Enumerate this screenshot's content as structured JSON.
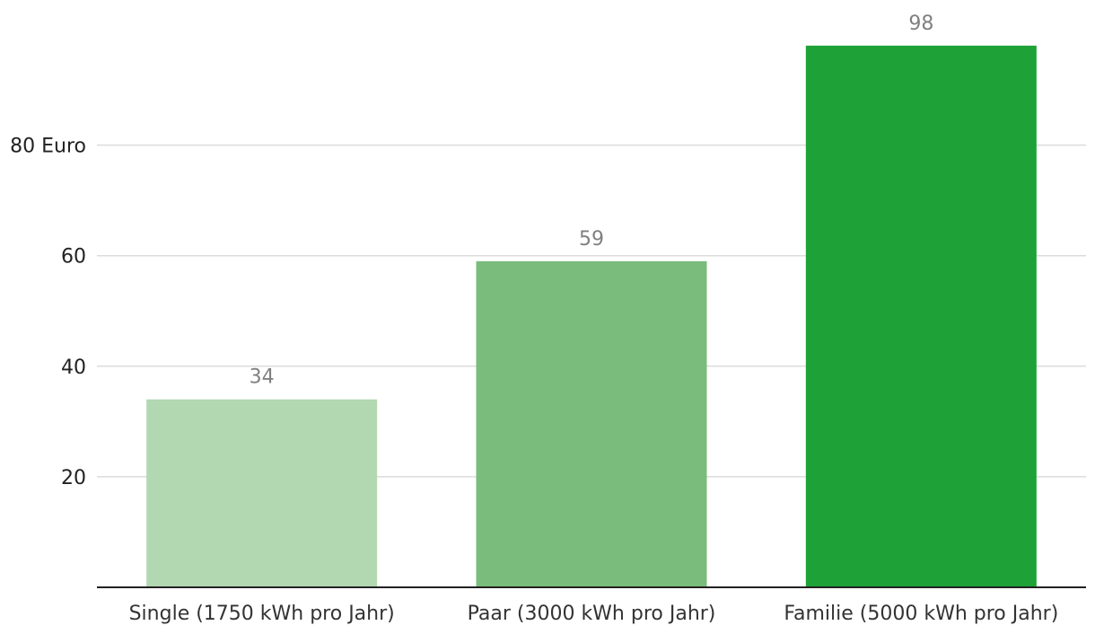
{
  "chart_data": {
    "type": "bar",
    "title": "",
    "xlabel": "",
    "ylabel": "",
    "y_unit_suffix": " Euro",
    "y_unit_on_tick": 80,
    "categories": [
      "Single (1750 kWh pro Jahr)",
      "Paar (3000 kWh pro Jahr)",
      "Familie (5000 kWh pro Jahr)"
    ],
    "values": [
      34,
      59,
      98
    ],
    "value_labels": [
      "34",
      "59",
      "98"
    ],
    "bar_colors": [
      "#b2d8b2",
      "#79bc7b",
      "#1ea237"
    ],
    "ylim": [
      0,
      100
    ],
    "yticks": [
      20,
      40,
      60,
      80
    ],
    "grid": true,
    "legend": "none"
  }
}
